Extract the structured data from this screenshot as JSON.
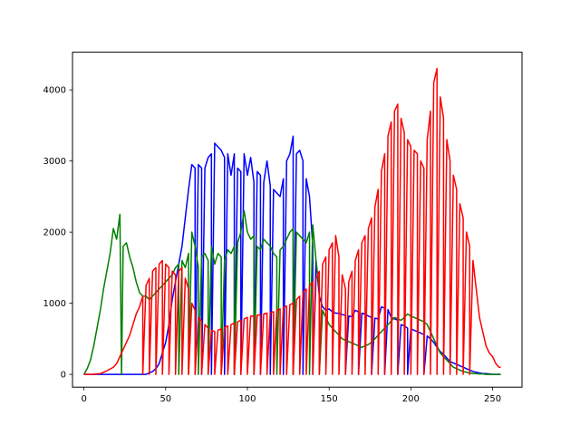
{
  "chart_data": {
    "type": "line",
    "title": "",
    "xlabel": "",
    "ylabel": "",
    "xlim": [
      -7,
      268
    ],
    "ylim": [
      -180,
      4530
    ],
    "xticks": [
      0,
      50,
      100,
      150,
      200,
      250
    ],
    "yticks": [
      0,
      1000,
      2000,
      3000,
      4000
    ],
    "grid": false,
    "legend": "none",
    "series": [
      {
        "color": "#0000ff",
        "x": [
          0,
          10,
          20,
          30,
          38,
          42,
          44,
          46,
          48,
          50,
          52,
          54,
          56,
          58,
          60,
          62,
          64,
          66,
          68,
          70,
          72,
          74,
          76,
          78,
          80,
          82,
          84,
          86,
          88,
          90,
          92,
          94,
          96,
          98,
          100,
          102,
          104,
          106,
          108,
          110,
          112,
          114,
          116,
          118,
          120,
          122,
          124,
          126,
          128,
          130,
          132,
          134,
          136,
          138,
          140,
          142,
          144,
          146,
          148,
          150,
          152,
          154,
          156,
          158,
          160,
          162,
          164,
          166,
          168,
          170,
          172,
          174,
          176,
          178,
          180,
          182,
          184,
          186,
          188,
          190,
          192,
          194,
          196,
          198,
          200,
          202,
          204,
          206,
          208,
          210,
          212,
          214,
          216,
          218,
          220,
          222,
          224,
          226,
          228,
          230,
          232,
          234,
          236,
          238,
          240,
          242,
          244,
          246,
          248,
          250,
          252,
          254,
          255
        ],
        "y": [
          0,
          0,
          0,
          0,
          0,
          40,
          80,
          150,
          300,
          450,
          700,
          1050,
          1300,
          1550,
          1800,
          2200,
          2600,
          2950,
          2900,
          2950,
          2900,
          2900,
          3050,
          3100,
          3250,
          3200,
          3150,
          3050,
          3100,
          2800,
          3100,
          2900,
          2850,
          3100,
          2800,
          3050,
          2700,
          2850,
          2800,
          2700,
          3000,
          2650,
          2600,
          2550,
          2500,
          2750,
          3000,
          3100,
          3350,
          3100,
          3150,
          3000,
          2750,
          2500,
          1800,
          1600,
          1100,
          950,
          900,
          920,
          880,
          860,
          860,
          840,
          830,
          820,
          810,
          900,
          880,
          860,
          850,
          820,
          800,
          790,
          780,
          950,
          930,
          910,
          800,
          780,
          760,
          700,
          680,
          650,
          640,
          620,
          600,
          580,
          560,
          540,
          500,
          450,
          380,
          320,
          280,
          230,
          180,
          160,
          140,
          120,
          100,
          80,
          60,
          40,
          30,
          20,
          10,
          10,
          5,
          0,
          0,
          0,
          0
        ],
        "notches": [
          [
            68,
            0
          ],
          [
            72,
            0
          ],
          [
            78,
            0
          ],
          [
            86,
            0
          ],
          [
            92,
            0
          ],
          [
            96,
            0
          ],
          [
            104,
            0
          ],
          [
            108,
            0
          ],
          [
            114,
            0
          ],
          [
            122,
            0
          ],
          [
            128,
            0
          ],
          [
            134,
            0
          ],
          [
            140,
            0
          ],
          [
            160,
            0
          ],
          [
            168,
            0
          ],
          [
            176,
            0
          ],
          [
            184,
            0
          ],
          [
            192,
            0
          ],
          [
            198,
            0
          ],
          [
            208,
            0
          ]
        ]
      },
      {
        "color": "#008000",
        "x": [
          0,
          2,
          4,
          6,
          8,
          10,
          12,
          14,
          16,
          18,
          20,
          22,
          23,
          24,
          26,
          28,
          30,
          32,
          34,
          36,
          38,
          40,
          42,
          44,
          46,
          48,
          50,
          52,
          54,
          56,
          58,
          60,
          62,
          64,
          66,
          68,
          70,
          72,
          74,
          76,
          78,
          80,
          82,
          84,
          86,
          88,
          90,
          92,
          94,
          96,
          98,
          100,
          102,
          104,
          106,
          108,
          110,
          112,
          114,
          116,
          118,
          120,
          122,
          124,
          126,
          128,
          130,
          132,
          134,
          136,
          138,
          140,
          142,
          144,
          146,
          148,
          150,
          152,
          154,
          156,
          158,
          160,
          162,
          164,
          166,
          168,
          170,
          172,
          174,
          176,
          178,
          180,
          182,
          184,
          186,
          188,
          190,
          192,
          194,
          196,
          198,
          200,
          202,
          204,
          206,
          208,
          210,
          212,
          214,
          216,
          218,
          220,
          222,
          224,
          226,
          228,
          230,
          232,
          234,
          236,
          238,
          240,
          242,
          244,
          246,
          248,
          250,
          252,
          254,
          255
        ],
        "y": [
          0,
          80,
          200,
          400,
          650,
          900,
          1200,
          1450,
          1700,
          2050,
          1900,
          2250,
          0,
          1800,
          1850,
          1650,
          1500,
          1300,
          1150,
          1100,
          1100,
          1050,
          1100,
          1150,
          1200,
          1250,
          1300,
          1350,
          1400,
          1500,
          1550,
          1600,
          1500,
          1700,
          2000,
          1800,
          1500,
          1650,
          1700,
          1600,
          1800,
          1550,
          1700,
          1650,
          1600,
          1750,
          1700,
          1800,
          1850,
          2000,
          2300,
          2000,
          1900,
          1950,
          1800,
          1750,
          1900,
          1850,
          1800,
          1700,
          1650,
          1750,
          1800,
          1900,
          2000,
          2050,
          2000,
          1950,
          1900,
          1850,
          2000,
          2100,
          1600,
          1200,
          900,
          800,
          700,
          650,
          600,
          550,
          500,
          480,
          460,
          440,
          420,
          400,
          380,
          400,
          420,
          450,
          500,
          550,
          600,
          650,
          700,
          750,
          800,
          780,
          760,
          800,
          850,
          820,
          800,
          780,
          760,
          740,
          700,
          600,
          500,
          400,
          300,
          250,
          200,
          150,
          100,
          80,
          60,
          40,
          30,
          20,
          10,
          10,
          5,
          5,
          0,
          0,
          0,
          0,
          0,
          0
        ],
        "notches": [
          [
            58,
            0
          ],
          [
            64,
            0
          ],
          [
            70,
            0
          ],
          [
            76,
            0
          ],
          [
            84,
            0
          ],
          [
            92,
            0
          ],
          [
            104,
            0
          ],
          [
            118,
            0
          ],
          [
            128,
            0
          ],
          [
            138,
            0
          ],
          [
            144,
            0
          ]
        ]
      },
      {
        "color": "#ff0000",
        "x": [
          0,
          5,
          10,
          14,
          18,
          20,
          22,
          24,
          26,
          28,
          30,
          32,
          34,
          36,
          38,
          40,
          42,
          44,
          46,
          48,
          50,
          52,
          54,
          56,
          58,
          60,
          62,
          64,
          66,
          68,
          70,
          72,
          74,
          76,
          78,
          80,
          82,
          84,
          86,
          88,
          90,
          92,
          94,
          96,
          98,
          100,
          102,
          104,
          106,
          108,
          110,
          112,
          114,
          116,
          118,
          120,
          122,
          124,
          126,
          128,
          130,
          132,
          134,
          136,
          138,
          140,
          142,
          144,
          146,
          148,
          150,
          152,
          154,
          156,
          158,
          160,
          162,
          164,
          166,
          168,
          170,
          172,
          174,
          176,
          178,
          180,
          182,
          184,
          186,
          188,
          190,
          192,
          194,
          196,
          198,
          200,
          202,
          204,
          206,
          208,
          210,
          212,
          214,
          216,
          218,
          220,
          222,
          224,
          226,
          228,
          230,
          232,
          234,
          236,
          238,
          240,
          242,
          244,
          246,
          248,
          250,
          252,
          254,
          255
        ],
        "y": [
          0,
          0,
          10,
          50,
          100,
          150,
          250,
          350,
          450,
          550,
          700,
          850,
          950,
          1100,
          1250,
          1350,
          1450,
          1500,
          1550,
          1600,
          1550,
          1500,
          1450,
          1400,
          1450,
          1500,
          1350,
          1200,
          1000,
          900,
          800,
          750,
          700,
          650,
          620,
          600,
          620,
          640,
          660,
          680,
          700,
          720,
          740,
          760,
          780,
          800,
          820,
          820,
          830,
          840,
          850,
          860,
          870,
          880,
          900,
          920,
          940,
          960,
          980,
          1000,
          1050,
          1100,
          1150,
          1200,
          1250,
          1300,
          1350,
          1450,
          1550,
          1650,
          1750,
          1850,
          1950,
          1650,
          1400,
          1200,
          1300,
          1450,
          1600,
          1750,
          1850,
          1950,
          2050,
          2200,
          2350,
          2600,
          2850,
          3100,
          3350,
          3550,
          3700,
          3800,
          3600,
          3400,
          3300,
          3200,
          3150,
          3100,
          3000,
          2900,
          3300,
          3700,
          4100,
          4300,
          3900,
          3600,
          3300,
          3000,
          2800,
          2600,
          2400,
          2200,
          2000,
          1800,
          1600,
          1200,
          800,
          600,
          400,
          300,
          250,
          150,
          100,
          100
        ],
        "notches": [
          [
            36,
            0
          ],
          [
            40,
            0
          ],
          [
            44,
            0
          ],
          [
            48,
            0
          ],
          [
            52,
            0
          ],
          [
            56,
            0
          ],
          [
            60,
            0
          ],
          [
            64,
            0
          ],
          [
            68,
            0
          ],
          [
            72,
            0
          ],
          [
            76,
            0
          ],
          [
            80,
            0
          ],
          [
            84,
            0
          ],
          [
            88,
            0
          ],
          [
            92,
            0
          ],
          [
            96,
            0
          ],
          [
            100,
            0
          ],
          [
            104,
            0
          ],
          [
            108,
            0
          ],
          [
            112,
            0
          ],
          [
            116,
            0
          ],
          [
            120,
            0
          ],
          [
            124,
            0
          ],
          [
            128,
            0
          ],
          [
            132,
            0
          ],
          [
            136,
            0
          ],
          [
            140,
            0
          ],
          [
            144,
            0
          ],
          [
            148,
            0
          ],
          [
            152,
            0
          ],
          [
            156,
            0
          ],
          [
            160,
            0
          ],
          [
            164,
            0
          ],
          [
            168,
            0
          ],
          [
            172,
            0
          ],
          [
            176,
            0
          ],
          [
            180,
            0
          ],
          [
            184,
            0
          ],
          [
            188,
            0
          ],
          [
            192,
            0
          ],
          [
            196,
            0
          ],
          [
            200,
            0
          ],
          [
            204,
            0
          ],
          [
            208,
            0
          ],
          [
            212,
            0
          ],
          [
            216,
            0
          ],
          [
            220,
            0
          ],
          [
            224,
            0
          ],
          [
            228,
            0
          ],
          [
            232,
            0
          ],
          [
            236,
            0
          ]
        ]
      }
    ]
  }
}
